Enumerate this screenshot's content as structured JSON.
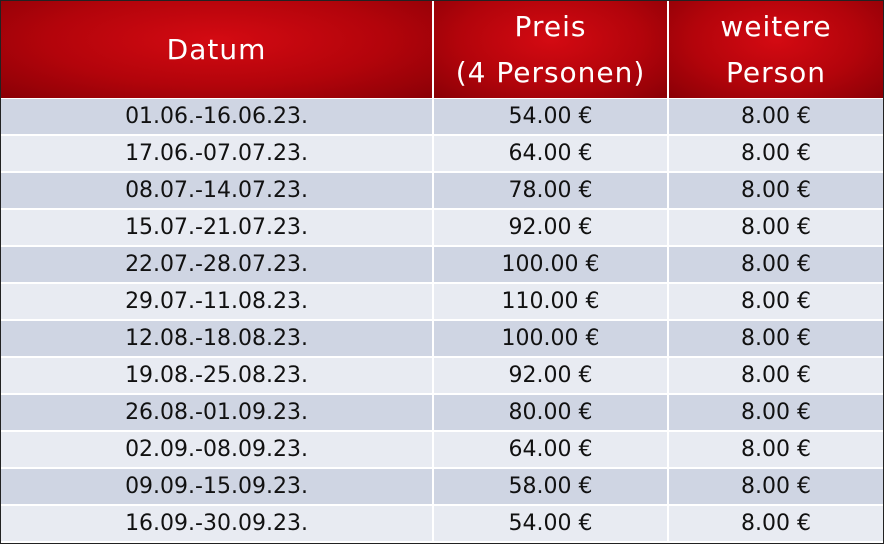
{
  "table": {
    "header": [
      [
        "Datum"
      ],
      [
        "Preis",
        "(4 Personen)"
      ],
      [
        "weitere",
        "Person"
      ]
    ],
    "rows": [
      [
        "01.06.-16.06.23.",
        "54.00 €",
        "8.00 €"
      ],
      [
        "17.06.-07.07.23.",
        "64.00 €",
        "8.00 €"
      ],
      [
        "08.07.-14.07.23.",
        "78.00 €",
        "8.00 €"
      ],
      [
        "15.07.-21.07.23.",
        "92.00 €",
        "8.00 €"
      ],
      [
        "22.07.-28.07.23.",
        "100.00 €",
        "8.00 €"
      ],
      [
        "29.07.-11.08.23.",
        "110.00 €",
        "8.00 €"
      ],
      [
        "12.08.-18.08.23.",
        "100.00 €",
        "8.00 €"
      ],
      [
        "19.08.-25.08.23.",
        "92.00 €",
        "8.00 €"
      ],
      [
        "26.08.-01.09.23.",
        "80.00 €",
        "8.00 €"
      ],
      [
        "02.09.-08.09.23.",
        "64.00 €",
        "8.00 €"
      ],
      [
        "09.09.-15.09.23.",
        "58.00 €",
        "8.00 €"
      ],
      [
        "16.09.-30.09.23.",
        "54.00 €",
        "8.00 €"
      ]
    ]
  }
}
